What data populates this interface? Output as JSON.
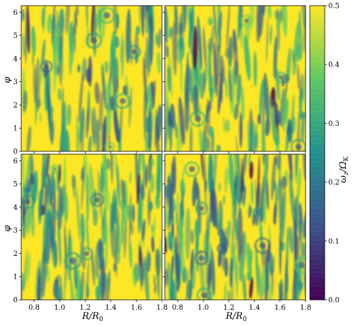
{
  "chart_data": {
    "type": "heatmap",
    "layout": "2x2 panels with shared colorbar",
    "panels": [
      {
        "position": "top-left",
        "show_xticks": false,
        "show_yticks": true
      },
      {
        "position": "top-right",
        "show_xticks": false,
        "show_yticks": false
      },
      {
        "position": "bottom-left",
        "show_xticks": true,
        "show_yticks": true
      },
      {
        "position": "bottom-right",
        "show_xticks": true,
        "show_yticks": false
      }
    ],
    "xlabel": "R/R0",
    "xlabel_parts": {
      "main": "R/R",
      "sub": "0"
    },
    "ylabel": "φ",
    "xlim": [
      0.7,
      1.8
    ],
    "ylim": [
      0,
      6.283
    ],
    "x_ticks": [
      "0.8",
      "1.0",
      "1.2",
      "1.4",
      "1.6",
      "1.8"
    ],
    "x_tick_values": [
      0.8,
      1.0,
      1.2,
      1.4,
      1.6,
      1.8
    ],
    "y_ticks": [
      "0",
      "1",
      "2",
      "3",
      "4",
      "5",
      "6"
    ],
    "y_tick_values": [
      0,
      1,
      2,
      3,
      4,
      5,
      6
    ],
    "colorbar": {
      "label": "ωz/ΩK",
      "label_parts": {
        "omega": "ω",
        "omega_sub": "z",
        "Omega": "Ω",
        "Omega_sub": "K"
      },
      "range": [
        0.0,
        0.5
      ],
      "ticks": [
        "0.0",
        "0.1",
        "0.2",
        "0.3",
        "0.4",
        "0.5"
      ],
      "tick_values": [
        0.0,
        0.1,
        0.2,
        0.3,
        0.4,
        0.5
      ],
      "colormap": "viridis",
      "colors": [
        "#440154",
        "#3b528b",
        "#21918c",
        "#5ec962",
        "#fde725"
      ]
    },
    "dominant_value": 0.5
  }
}
